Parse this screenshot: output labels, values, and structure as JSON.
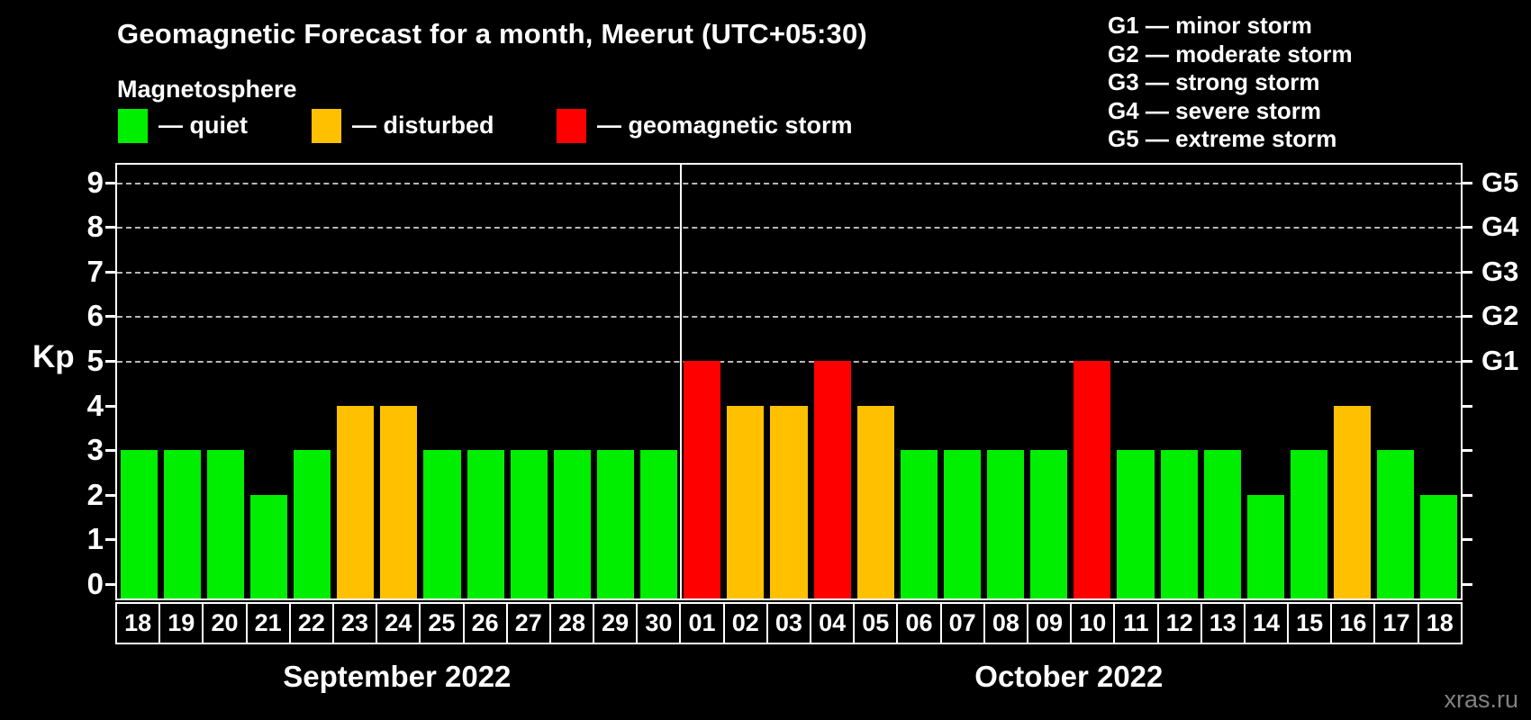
{
  "header": {
    "title": "Geomagnetic Forecast for a month, Meerut (UTC+05:30)",
    "subtitle": "Magnetosphere"
  },
  "legend": {
    "items": [
      {
        "key": "quiet",
        "label": "— quiet",
        "color": "#00ee00",
        "x": 131
      },
      {
        "key": "disturbed",
        "label": "— disturbed",
        "color": "#ffc000",
        "x": 346
      },
      {
        "key": "storm",
        "label": "— geomagnetic storm",
        "color": "#ff0000",
        "x": 618
      }
    ]
  },
  "g_legend": {
    "items": [
      "G1 — minor storm",
      "G2 — moderate storm",
      "G3 — strong storm",
      "G4 — severe storm",
      "G5 — extreme storm"
    ]
  },
  "axis": {
    "y_title": "Kp",
    "y_ticks": [
      0,
      1,
      2,
      3,
      4,
      5,
      6,
      7,
      8,
      9
    ],
    "right_labels": [
      {
        "kp": 5,
        "label": "G1"
      },
      {
        "kp": 6,
        "label": "G2"
      },
      {
        "kp": 7,
        "label": "G3"
      },
      {
        "kp": 8,
        "label": "G4"
      },
      {
        "kp": 9,
        "label": "G5"
      }
    ]
  },
  "months": [
    {
      "label": "September 2022",
      "start": 0,
      "count": 13
    },
    {
      "label": "October 2022",
      "start": 13,
      "count": 18
    }
  ],
  "watermark": "xras.ru",
  "chart_data": {
    "type": "bar",
    "title": "Geomagnetic Forecast for a month, Meerut (UTC+05:30)",
    "ylabel": "Kp",
    "ylim": [
      0,
      9
    ],
    "grid": "dashed horizontal at Kp 5-9",
    "gridlines_at": [
      5,
      6,
      7,
      8,
      9
    ],
    "legend_position": "top",
    "month_split_index": 13,
    "x": [
      "18",
      "19",
      "20",
      "21",
      "22",
      "23",
      "24",
      "25",
      "26",
      "27",
      "28",
      "29",
      "30",
      "01",
      "02",
      "03",
      "04",
      "05",
      "06",
      "07",
      "08",
      "09",
      "10",
      "11",
      "12",
      "13",
      "14",
      "15",
      "16",
      "17",
      "18"
    ],
    "values": [
      3,
      3,
      3,
      2,
      3,
      4,
      4,
      3,
      3,
      3,
      3,
      3,
      3,
      5,
      4,
      4,
      5,
      4,
      3,
      3,
      3,
      3,
      5,
      3,
      3,
      3,
      2,
      3,
      4,
      3,
      2
    ],
    "status": [
      "quiet",
      "quiet",
      "quiet",
      "quiet",
      "quiet",
      "disturbed",
      "disturbed",
      "quiet",
      "quiet",
      "quiet",
      "quiet",
      "quiet",
      "quiet",
      "storm",
      "disturbed",
      "disturbed",
      "storm",
      "disturbed",
      "quiet",
      "quiet",
      "quiet",
      "quiet",
      "storm",
      "quiet",
      "quiet",
      "quiet",
      "quiet",
      "quiet",
      "disturbed",
      "quiet",
      "quiet"
    ],
    "colors": {
      "quiet": "#00ee00",
      "disturbed": "#ffc000",
      "storm": "#ff0000"
    }
  }
}
